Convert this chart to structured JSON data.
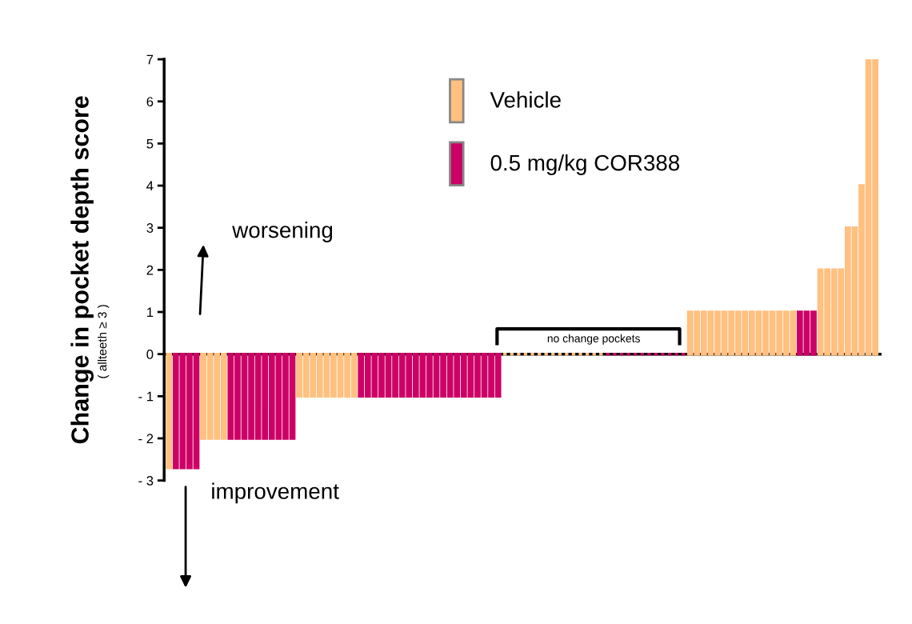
{
  "chart_data": {
    "type": "bar",
    "ylabel": "Change in pocket depth score",
    "categories": [
      null,
      null,
      null,
      null,
      null,
      null,
      null,
      null,
      null,
      null,
      null,
      null,
      null,
      null,
      null,
      null,
      null,
      null,
      null,
      null,
      null,
      null,
      null,
      null,
      null,
      null,
      null,
      null,
      null,
      null,
      null,
      null,
      null,
      null,
      null,
      null,
      null,
      null,
      null,
      null,
      null,
      null,
      null,
      null,
      null,
      null,
      null,
      null,
      null,
      null,
      null,
      null,
      null,
      null,
      null,
      null,
      null,
      null,
      null,
      null,
      null,
      null,
      null,
      null,
      null,
      null,
      null,
      null,
      null,
      null,
      null,
      null,
      null,
      null,
      null,
      null,
      null,
      null,
      null,
      null,
      null,
      null,
      null,
      null,
      null,
      null,
      null,
      null,
      null,
      null,
      null,
      null,
      null,
      null,
      null,
      null,
      null,
      null,
      null,
      null,
      null,
      null,
      null,
      null
    ],
    "series": [
      {
        "name": "Vehicle",
        "color": "#ffc080",
        "values": [
          -2.7,
          null,
          null,
          null,
          null,
          -2,
          -2,
          -2,
          -2,
          null,
          null,
          null,
          null,
          null,
          null,
          null,
          null,
          null,
          null,
          -1,
          -1,
          -1,
          -1,
          -1,
          -1,
          -1,
          -1,
          -1,
          null,
          null,
          null,
          null,
          null,
          null,
          null,
          null,
          null,
          null,
          null,
          null,
          null,
          null,
          null,
          null,
          null,
          null,
          null,
          null,
          null,
          0,
          0,
          0,
          0,
          0,
          0,
          0,
          0,
          0,
          0,
          0,
          0,
          0,
          0,
          0,
          null,
          null,
          null,
          null,
          null,
          null,
          null,
          null,
          null,
          null,
          null,
          null,
          1,
          1,
          1,
          1,
          1,
          1,
          1,
          1,
          1,
          1,
          1,
          1,
          1,
          1,
          1,
          1,
          null,
          null,
          null,
          2,
          2,
          2,
          2,
          3,
          3,
          4,
          7,
          7
        ]
      },
      {
        "name": "0.5 mg/kg COR388",
        "color": "#cc0066",
        "values": [
          null,
          -2.7,
          -2.7,
          -2.7,
          -2.7,
          null,
          null,
          null,
          null,
          -2,
          -2,
          -2,
          -2,
          -2,
          -2,
          -2,
          -2,
          -2,
          -2,
          null,
          null,
          null,
          null,
          null,
          null,
          null,
          null,
          null,
          -1,
          -1,
          -1,
          -1,
          -1,
          -1,
          -1,
          -1,
          -1,
          -1,
          -1,
          -1,
          -1,
          -1,
          -1,
          -1,
          -1,
          -1,
          -1,
          -1,
          -1,
          null,
          null,
          null,
          null,
          null,
          null,
          null,
          null,
          null,
          null,
          null,
          null,
          null,
          null,
          null,
          0,
          0,
          0,
          0,
          0,
          0,
          0,
          0,
          0,
          0,
          0,
          0,
          null,
          null,
          null,
          null,
          null,
          null,
          null,
          null,
          null,
          null,
          null,
          null,
          null,
          null,
          null,
          null,
          1,
          1,
          1,
          null,
          null,
          null,
          null,
          null,
          null,
          null,
          null,
          null
        ]
      }
    ],
    "ylim": [
      -3,
      7
    ],
    "yticks": [
      {
        "value": -3,
        "label": "- 3"
      },
      {
        "value": -2,
        "label": "- 2"
      },
      {
        "value": -1,
        "label": "- 1"
      },
      0,
      1,
      2,
      3,
      4,
      5,
      6,
      7
    ],
    "tick_labels": "y",
    "legend": "top",
    "annotations": [
      "( allteeth ≥ 3 )",
      "worsening",
      "improvement",
      "no change pockets"
    ]
  }
}
